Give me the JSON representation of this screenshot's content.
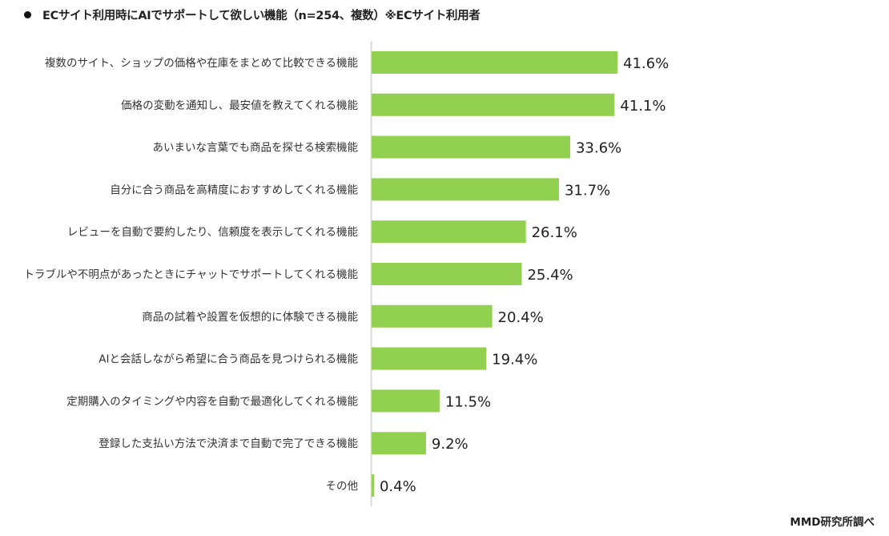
{
  "chart_data": {
    "type": "bar",
    "orientation": "horizontal",
    "title": "ECサイト利用時にAIでサポートして欲しい機能（n=254、複数）※ECサイト利用者",
    "xlabel": "",
    "ylabel": "",
    "unit": "%",
    "xlim": [
      0,
      45
    ],
    "grid": false,
    "categories": [
      "複数のサイト、ショップの価格や在庫をまとめて比較できる機能",
      "価格の変動を通知し、最安値を教えてくれる機能",
      "あいまいな言葉でも商品を探せる検索機能",
      "自分に合う商品を高精度におすすめしてくれる機能",
      "レビューを自動で要約したり、信頼度を表示してくれる機能",
      "トラブルや不明点があったときにチャットでサポートしてくれる機能",
      "商品の試着や設置を仮想的に体験できる機能",
      "AIと会話しながら希望に合う商品を見つけられる機能",
      "定期購入のタイミングや内容を自動で最適化してくれる機能",
      "登録した支払い方法で決済まで自動で完了できる機能",
      "その他"
    ],
    "values": [
      41.6,
      41.1,
      33.6,
      31.7,
      26.1,
      25.4,
      20.4,
      19.4,
      11.5,
      9.2,
      0.4
    ],
    "value_labels": [
      "41.6%",
      "41.1%",
      "33.6%",
      "31.7%",
      "26.1%",
      "25.4%",
      "20.4%",
      "19.4%",
      "11.5%",
      "9.2%",
      "0.4%"
    ],
    "bar_color": "#92d050",
    "axis_color": "#d9d9d9"
  },
  "source": "MMD研究所調べ"
}
